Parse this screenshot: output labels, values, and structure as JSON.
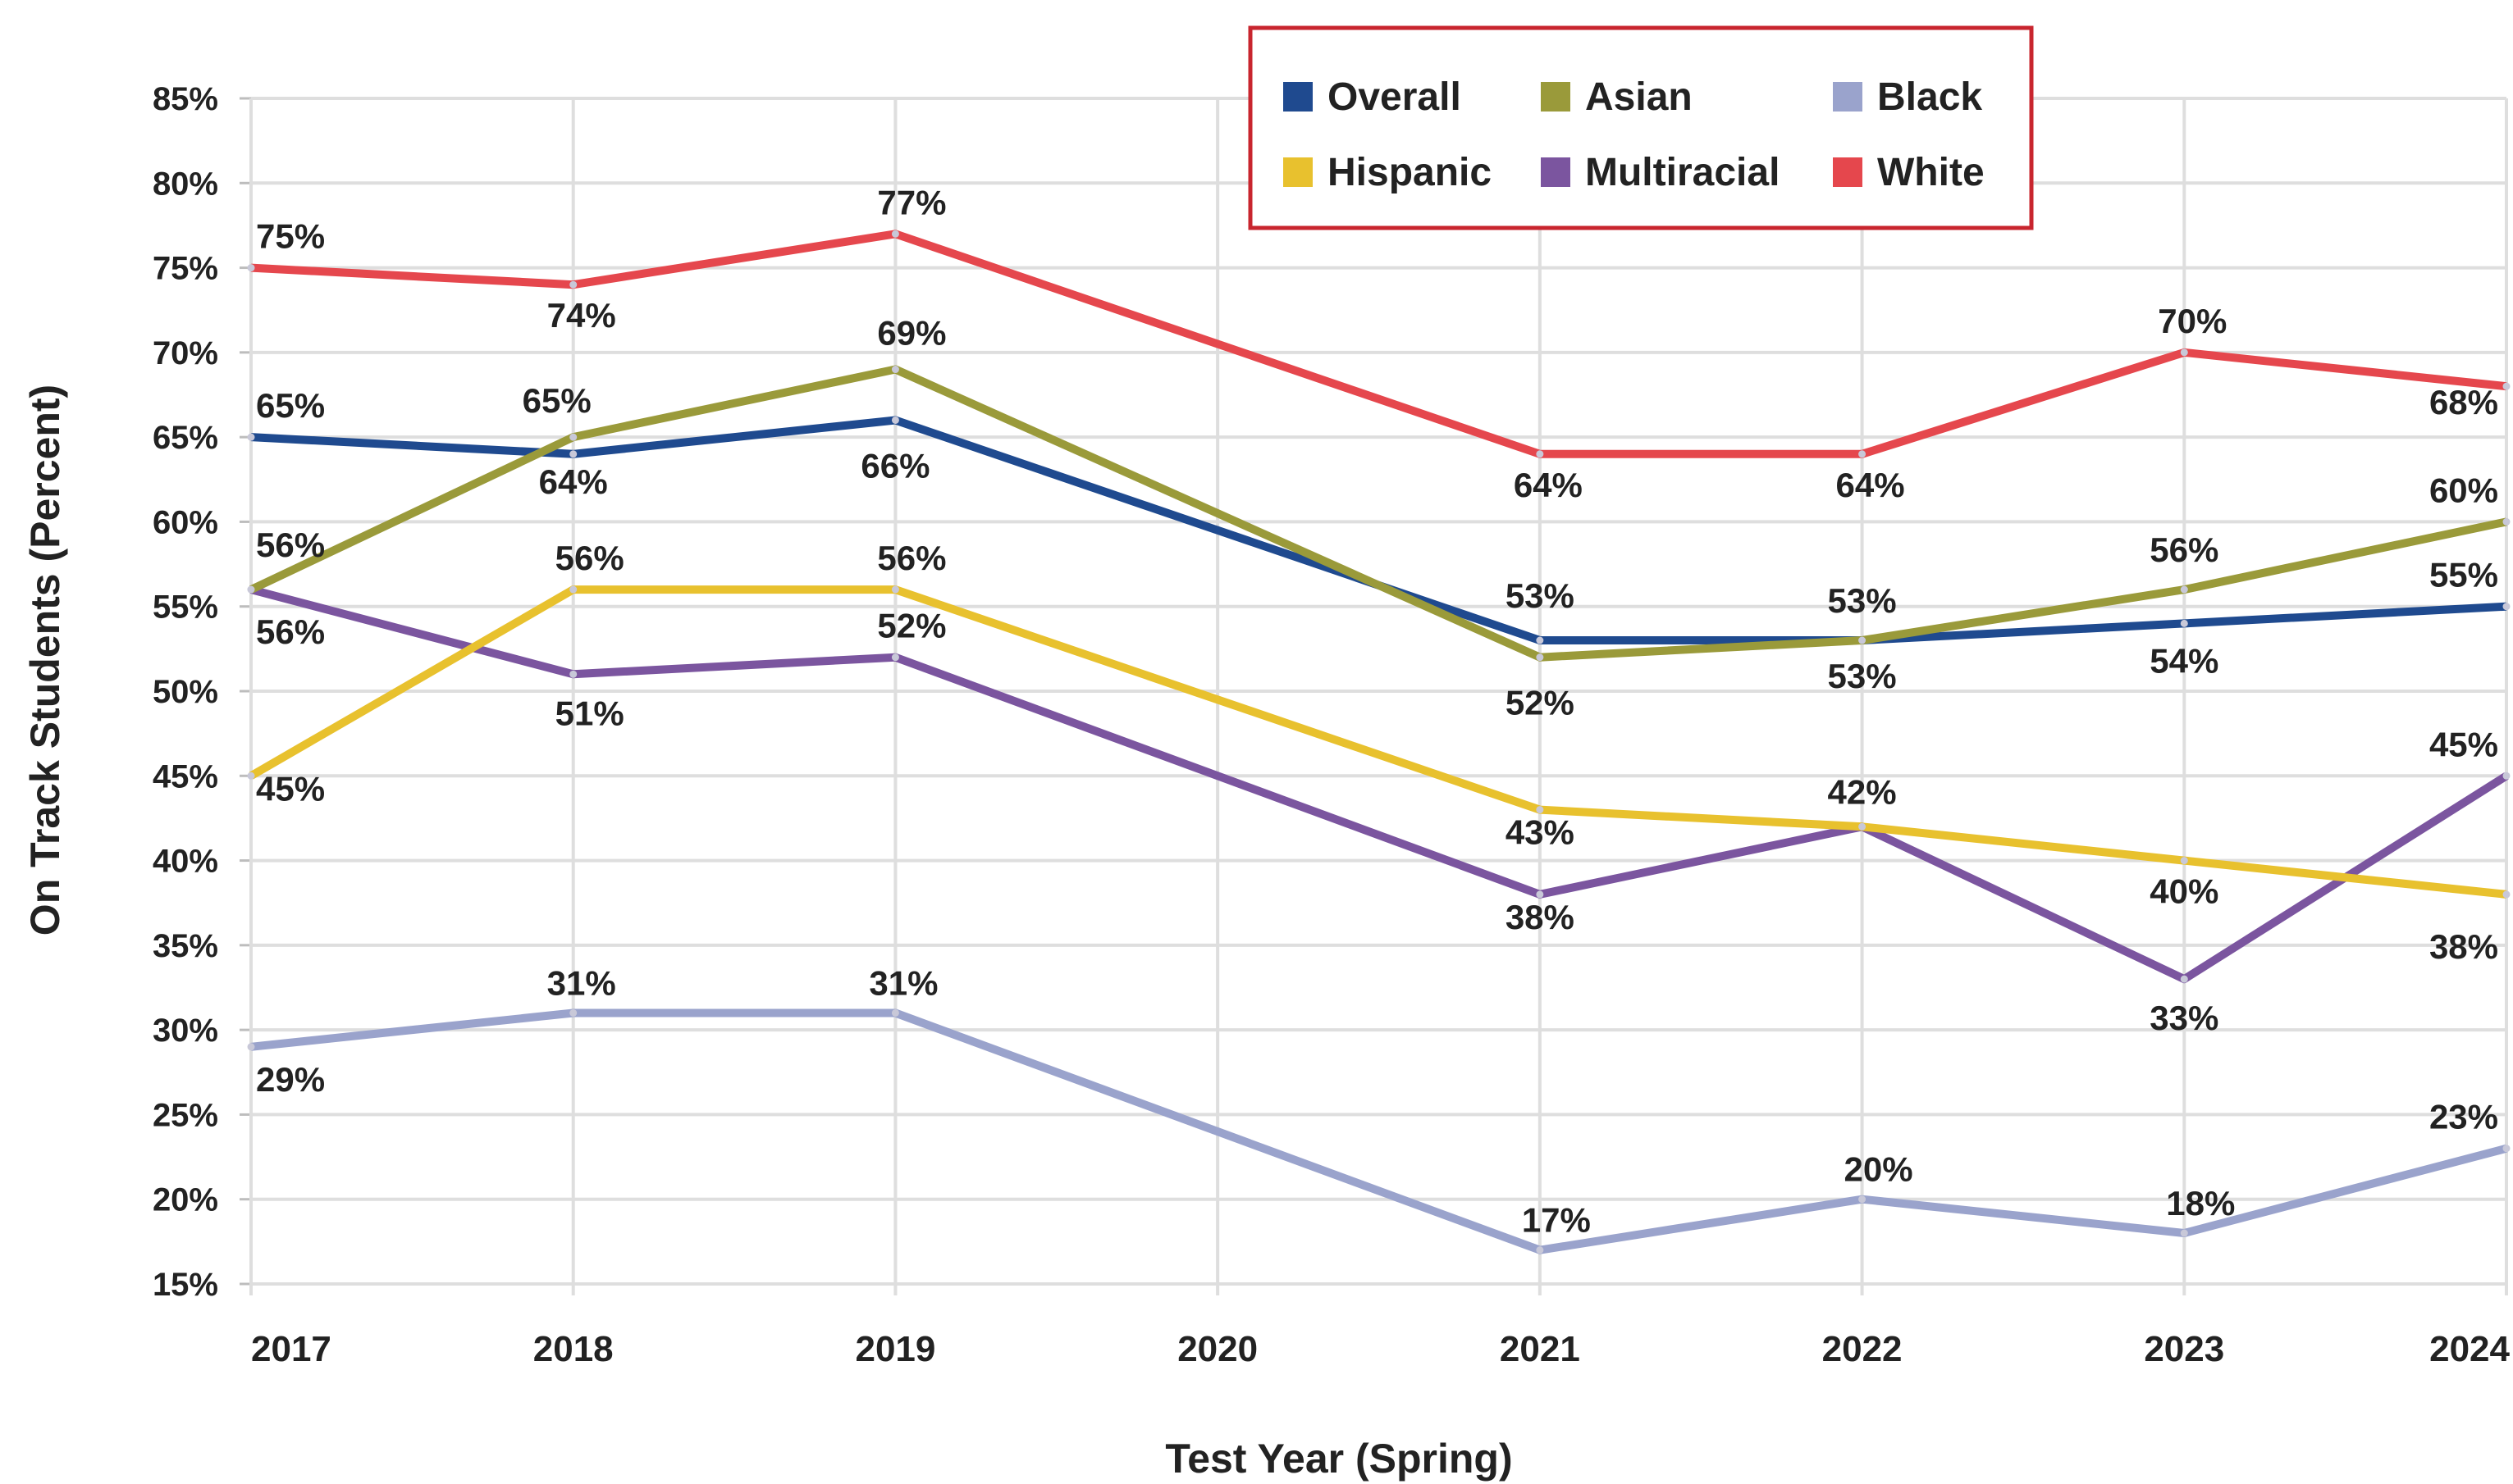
{
  "chart_data": {
    "type": "line",
    "xlabel": "Test Year (Spring)",
    "ylabel": "On Track Students (Percent)",
    "x": [
      "2017",
      "2018",
      "2019",
      "2020",
      "2021",
      "2022",
      "2023",
      "2024"
    ],
    "ylim": [
      15,
      85
    ],
    "yticks": [
      "15%",
      "20%",
      "25%",
      "30%",
      "35%",
      "40%",
      "45%",
      "50%",
      "55%",
      "60%",
      "65%",
      "70%",
      "75%",
      "80%",
      "85%"
    ],
    "grid": true,
    "legend": "top-center",
    "series": [
      {
        "name": "Overall",
        "color": "#1f4a8f",
        "values": [
          65,
          64,
          66,
          null,
          53,
          53,
          54,
          55
        ],
        "labels": [
          "65%",
          "64%",
          "66%",
          null,
          "53%",
          "53%",
          "54%",
          "55%"
        ]
      },
      {
        "name": "Asian",
        "color": "#9a9a3a",
        "values": [
          56,
          65,
          69,
          null,
          52,
          53,
          56,
          60
        ],
        "labels": [
          "56%",
          "65%",
          "69%",
          null,
          "52%",
          "53%",
          "56%",
          "60%"
        ]
      },
      {
        "name": "Black",
        "color": "#9aa3cc",
        "values": [
          29,
          31,
          31,
          null,
          17,
          20,
          18,
          23
        ],
        "labels": [
          "29%",
          "31%",
          "31%",
          null,
          "17%",
          "20%",
          "18%",
          "23%"
        ]
      },
      {
        "name": "Hispanic",
        "color": "#e8c12e",
        "values": [
          45,
          56,
          56,
          null,
          43,
          42,
          40,
          38
        ],
        "labels": [
          "45%",
          "56%",
          "56%",
          null,
          "43%",
          "42%",
          "40%",
          "38%"
        ]
      },
      {
        "name": "Multiracial",
        "color": "#7b559f",
        "values": [
          56,
          51,
          52,
          null,
          38,
          42,
          33,
          45
        ],
        "labels": [
          "56%",
          "51%",
          "52%",
          null,
          "38%",
          "42%",
          "33%",
          "45%"
        ]
      },
      {
        "name": "White",
        "color": "#e5474d",
        "values": [
          75,
          74,
          77,
          null,
          64,
          64,
          70,
          68
        ],
        "labels": [
          "75%",
          "74%",
          "77%",
          null,
          "64%",
          "64%",
          "70%",
          "68%"
        ]
      }
    ]
  }
}
